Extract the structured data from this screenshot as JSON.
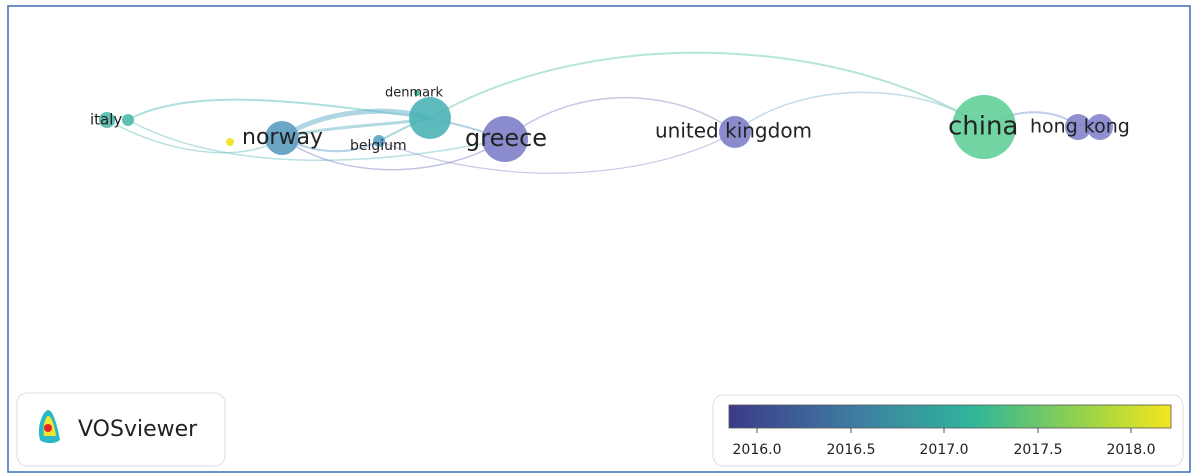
{
  "nodes": [
    {
      "label": "italy",
      "color": "#4fb9a8"
    },
    {
      "label": "norway",
      "color": "#5b9dbf"
    },
    {
      "label": "belgium",
      "color": "#5aa3c4"
    },
    {
      "label": "denmark",
      "color": "#4bb3b6"
    },
    {
      "label": "greece",
      "color": "#7e7fc8"
    },
    {
      "label": "united kingdom",
      "color": "#7d80c5"
    },
    {
      "label": "china",
      "color": "#62cf98"
    },
    {
      "label": "hong kong",
      "color": "#8483cb"
    }
  ],
  "legend": {
    "ticks": [
      "2016.0",
      "2016.5",
      "2017.0",
      "2017.5",
      "2018.0"
    ]
  },
  "logo": {
    "text": "VOSviewer"
  }
}
